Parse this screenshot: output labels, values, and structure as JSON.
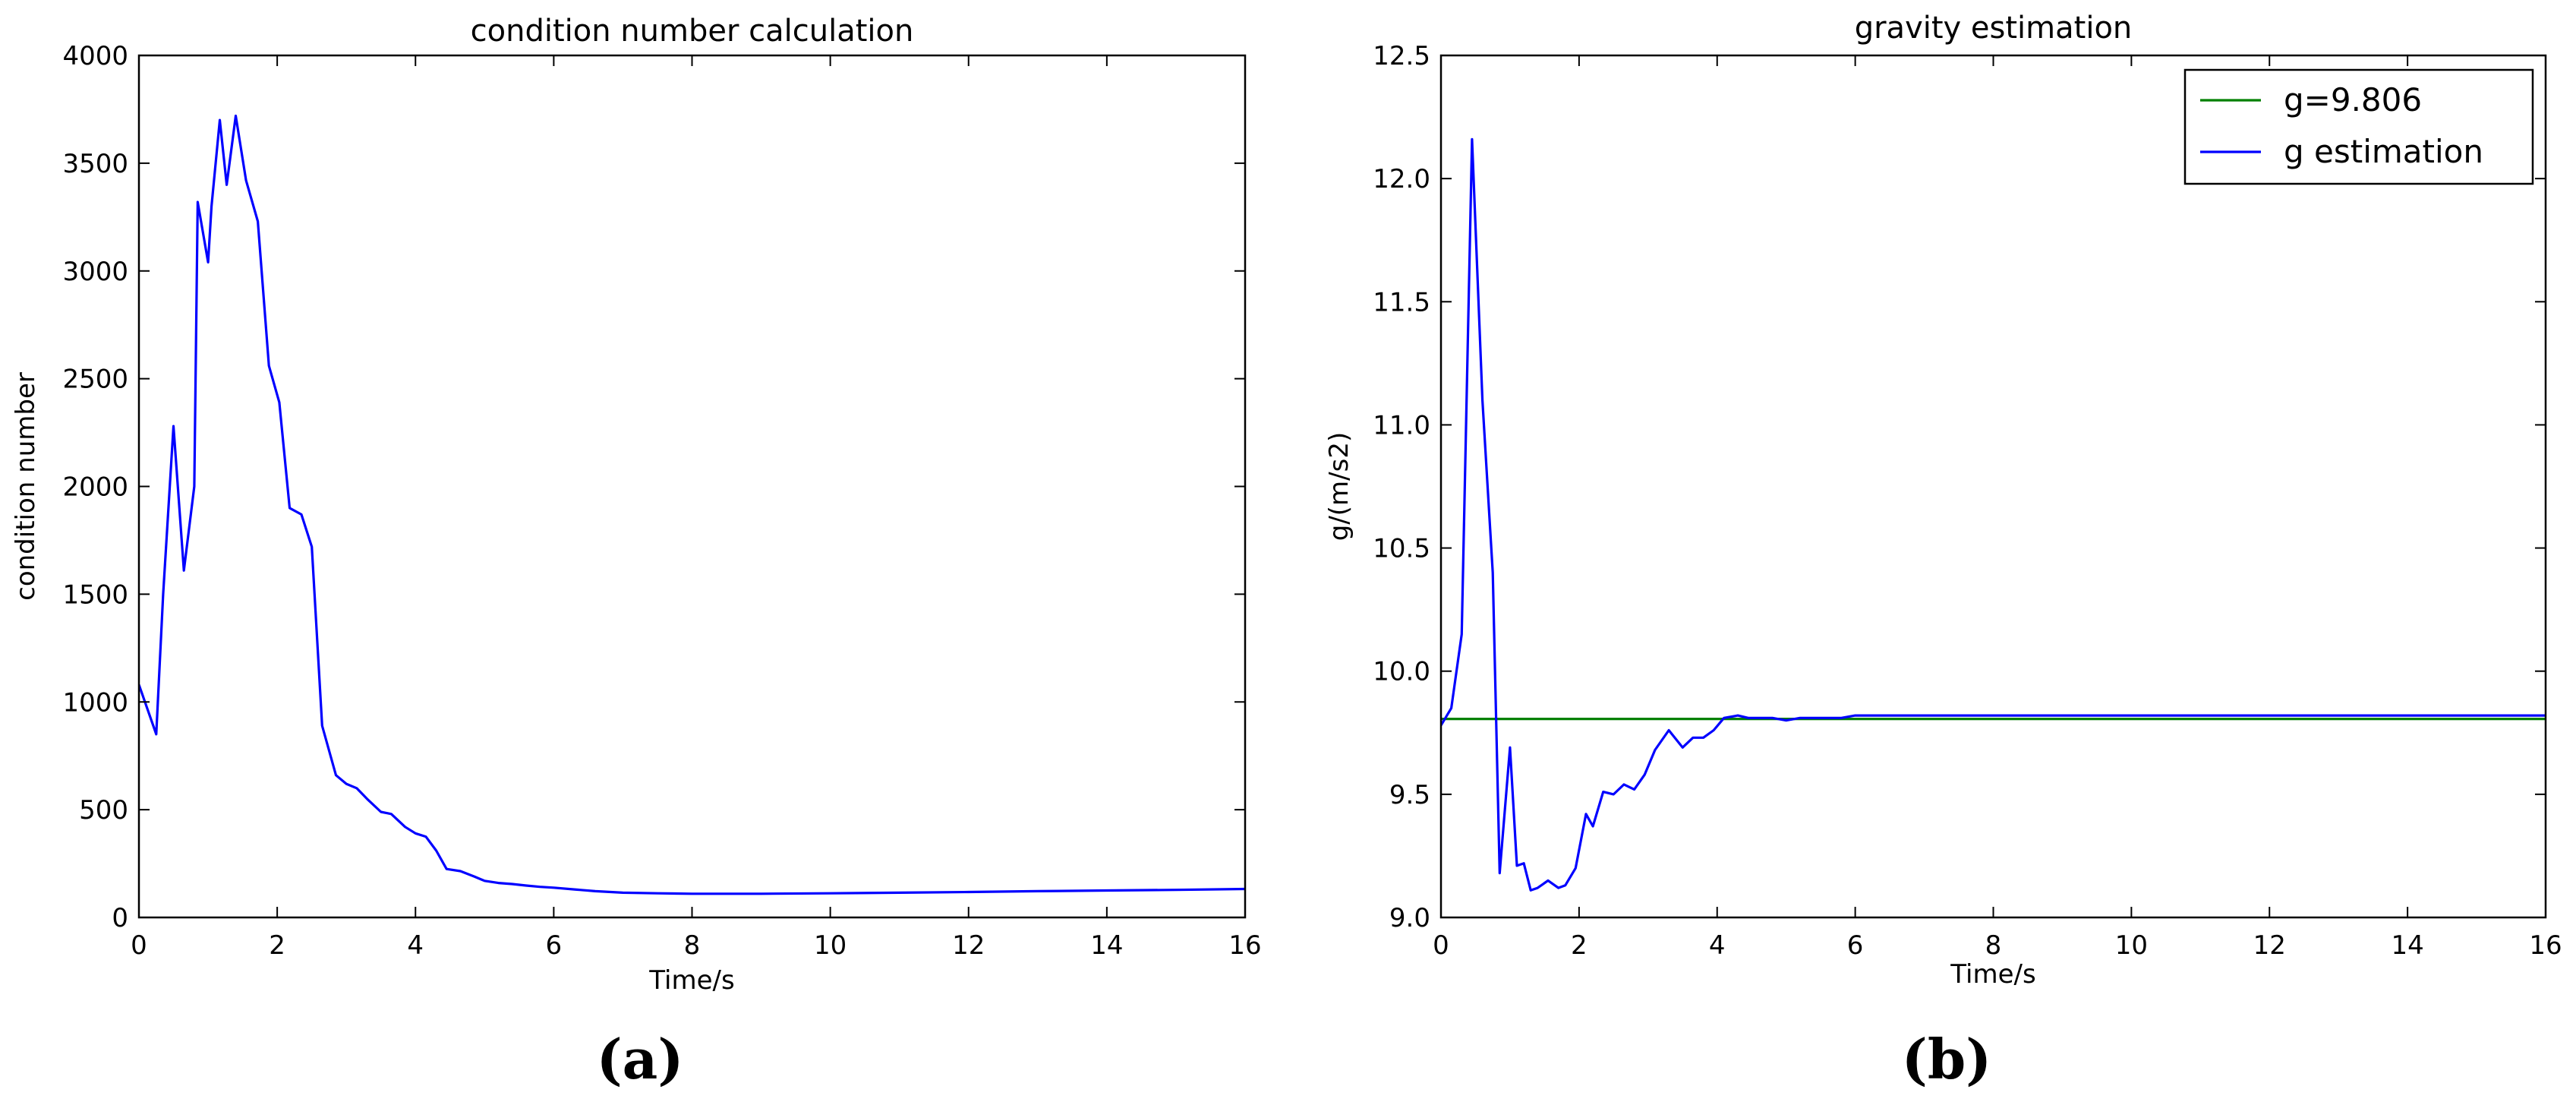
{
  "chart_data": [
    {
      "type": "line",
      "title": "condition number calculation",
      "xlabel": "Time/s",
      "ylabel": "condition number",
      "xlim": [
        0,
        16
      ],
      "ylim": [
        0,
        4000
      ],
      "xticks": [
        "0",
        "2",
        "4",
        "6",
        "8",
        "10",
        "12",
        "14",
        "16"
      ],
      "yticks": [
        "0",
        "500",
        "1000",
        "1500",
        "2000",
        "2500",
        "3000",
        "3500",
        "4000"
      ],
      "grid": false,
      "caption": "(a)",
      "series": [
        {
          "color": "#0000ff",
          "x": [
            0,
            0.25,
            0.35,
            0.5,
            0.65,
            0.8,
            0.85,
            1.0,
            1.05,
            1.17,
            1.27,
            1.4,
            1.55,
            1.72,
            1.88,
            2.03,
            2.18,
            2.35,
            2.5,
            2.65,
            2.85,
            3.0,
            3.15,
            3.3,
            3.5,
            3.65,
            3.85,
            4.0,
            4.15,
            4.3,
            4.45,
            4.65,
            4.85,
            5.0,
            5.2,
            5.4,
            5.6,
            5.8,
            6.0,
            6.3,
            6.6,
            7.0,
            7.5,
            8.0,
            9.0,
            10.0,
            11.0,
            12.0,
            13.0,
            14.0,
            15.0,
            16.0
          ],
          "y": [
            1080,
            850,
            1500,
            2280,
            1610,
            2000,
            3320,
            3040,
            3300,
            3700,
            3400,
            3720,
            3420,
            3230,
            2560,
            2390,
            1900,
            1870,
            1720,
            890,
            660,
            620,
            600,
            550,
            490,
            480,
            420,
            390,
            375,
            310,
            225,
            215,
            190,
            170,
            160,
            155,
            148,
            142,
            138,
            130,
            122,
            115,
            112,
            110,
            110,
            112,
            115,
            118,
            122,
            125,
            128,
            132
          ]
        }
      ]
    },
    {
      "type": "line",
      "title": "gravity estimation",
      "xlabel": "Time/s",
      "ylabel": "g/(m/s2)",
      "xlim": [
        0,
        16
      ],
      "ylim": [
        9.0,
        12.5
      ],
      "xticks": [
        "0",
        "2",
        "4",
        "6",
        "8",
        "10",
        "12",
        "14",
        "16"
      ],
      "yticks": [
        "9.0",
        "9.5",
        "10.0",
        "10.5",
        "11.0",
        "11.5",
        "12.0",
        "12.5"
      ],
      "grid": false,
      "legend_position": "top-right",
      "caption": "(b)",
      "series": [
        {
          "name": "g=9.806",
          "color": "#008000",
          "x": [
            0,
            16
          ],
          "y": [
            9.806,
            9.806
          ]
        },
        {
          "name": "g estimation",
          "color": "#0000ff",
          "x": [
            0,
            0.15,
            0.3,
            0.45,
            0.6,
            0.75,
            0.85,
            1.0,
            1.1,
            1.2,
            1.3,
            1.4,
            1.55,
            1.7,
            1.8,
            1.95,
            2.1,
            2.2,
            2.35,
            2.5,
            2.65,
            2.8,
            2.95,
            3.1,
            3.3,
            3.5,
            3.65,
            3.8,
            3.95,
            4.1,
            4.3,
            4.45,
            4.6,
            4.8,
            5.0,
            5.2,
            5.4,
            5.6,
            5.8,
            6.0,
            6.4,
            6.8,
            7.2,
            7.6,
            8.0,
            9.0,
            10.0,
            11.0,
            12.0,
            13.0,
            14.0,
            15.0,
            16.0
          ],
          "y": [
            9.78,
            9.85,
            10.15,
            12.16,
            11.1,
            10.4,
            9.18,
            9.69,
            9.21,
            9.22,
            9.11,
            9.12,
            9.15,
            9.12,
            9.13,
            9.2,
            9.42,
            9.37,
            9.51,
            9.5,
            9.54,
            9.52,
            9.58,
            9.68,
            9.76,
            9.69,
            9.73,
            9.73,
            9.76,
            9.81,
            9.82,
            9.81,
            9.81,
            9.81,
            9.8,
            9.81,
            9.81,
            9.81,
            9.81,
            9.82,
            9.82,
            9.82,
            9.82,
            9.82,
            9.82,
            9.82,
            9.82,
            9.82,
            9.82,
            9.82,
            9.82,
            9.82,
            9.82
          ]
        }
      ]
    }
  ]
}
